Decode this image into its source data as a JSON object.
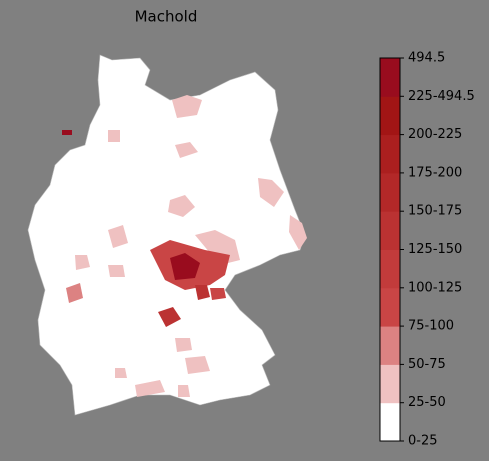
{
  "title": "Machold",
  "colorbar": {
    "labels": [
      "0-25",
      "25-50",
      "50-75",
      "75-100",
      "100-125",
      "125-150",
      "150-175",
      "175-200",
      "200-225",
      "225-494.5",
      "494.5"
    ],
    "colors": [
      "#ffffff",
      "#efc1c1",
      "#dc8282",
      "#c94545",
      "#c23b3b",
      "#bb3232",
      "#b32828",
      "#ab1f1f",
      "#a21515",
      "#990c1e"
    ]
  }
}
